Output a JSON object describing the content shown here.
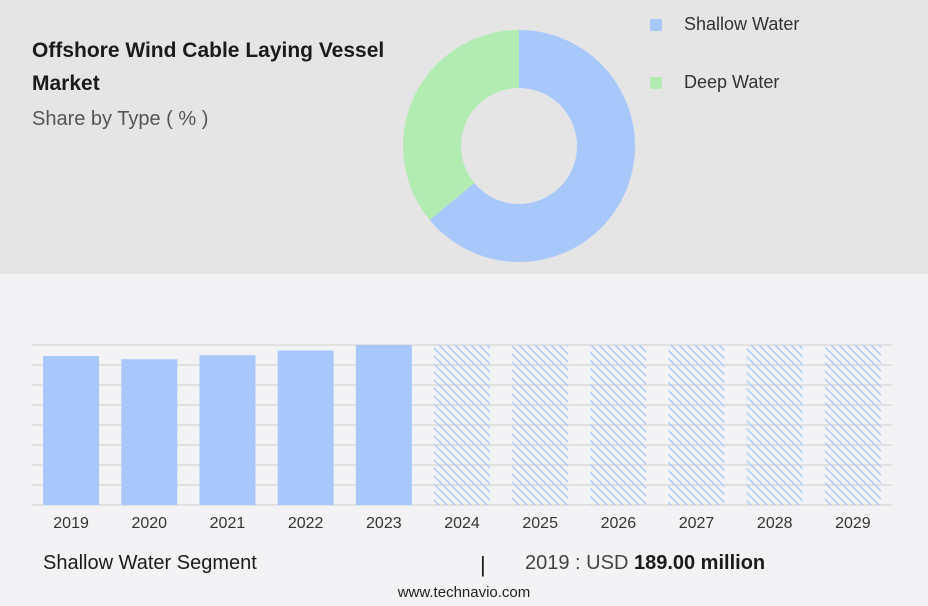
{
  "header": {
    "title": "Offshore Wind Cable Laying Vessel Market",
    "subtitle": "Share by Type ( % )"
  },
  "chart_data": [
    {
      "type": "pie",
      "variant": "donut",
      "title": "Share by Type ( % )",
      "categories": [
        "Shallow Water",
        "Deep Water"
      ],
      "values": [
        64,
        36
      ],
      "colors": [
        "#a8c8fc",
        "#b3ecb3"
      ],
      "legend_position": "right"
    },
    {
      "type": "bar",
      "categories": [
        "2019",
        "2020",
        "2021",
        "2022",
        "2023",
        "2024",
        "2025",
        "2026",
        "2027",
        "2028",
        "2029"
      ],
      "values": [
        189.0,
        185.0,
        190.0,
        196.0,
        203.0,
        null,
        null,
        null,
        null,
        null,
        null
      ],
      "forecast_from": "2024",
      "ylim": [
        0,
        203
      ],
      "grid": true,
      "colors": {
        "bar": "#a8c8fc",
        "forecast_hatch": "#a8c8fc",
        "grid": "#cfcfcf"
      }
    }
  ],
  "footer": {
    "segment_label": "Shallow Water Segment",
    "divider": "|",
    "year_text": "2019 : USD ",
    "value_text": "189.00 million",
    "source": "www.technavio.com"
  }
}
